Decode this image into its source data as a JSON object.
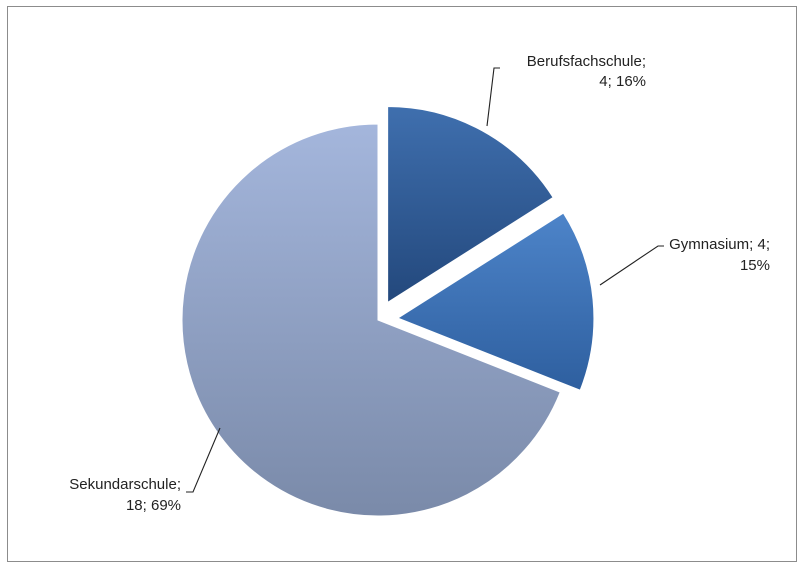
{
  "chart_data": {
    "type": "pie",
    "title": "",
    "legend": "none",
    "slices": [
      {
        "name": "Berufsfachschule",
        "value": 4,
        "percent": 16,
        "label_lines": [
          "Berufsfachschule;",
          "4; 16%"
        ],
        "color_light": "#3f6fae",
        "color_dark": "#23487c",
        "exploded": true
      },
      {
        "name": "Gymnasium",
        "value": 4,
        "percent": 15,
        "label_lines": [
          "Gymnasium; 4;",
          "15%"
        ],
        "color_light": "#4d84c9",
        "color_dark": "#2e5f9f",
        "exploded": true
      },
      {
        "name": "Sekundarschule",
        "value": 18,
        "percent": 69,
        "label_lines": [
          "Sekundarschule;",
          "18; 69%"
        ],
        "color_light": "#a4b6dc",
        "color_dark": "#7a8aa9",
        "exploded": false
      }
    ]
  }
}
